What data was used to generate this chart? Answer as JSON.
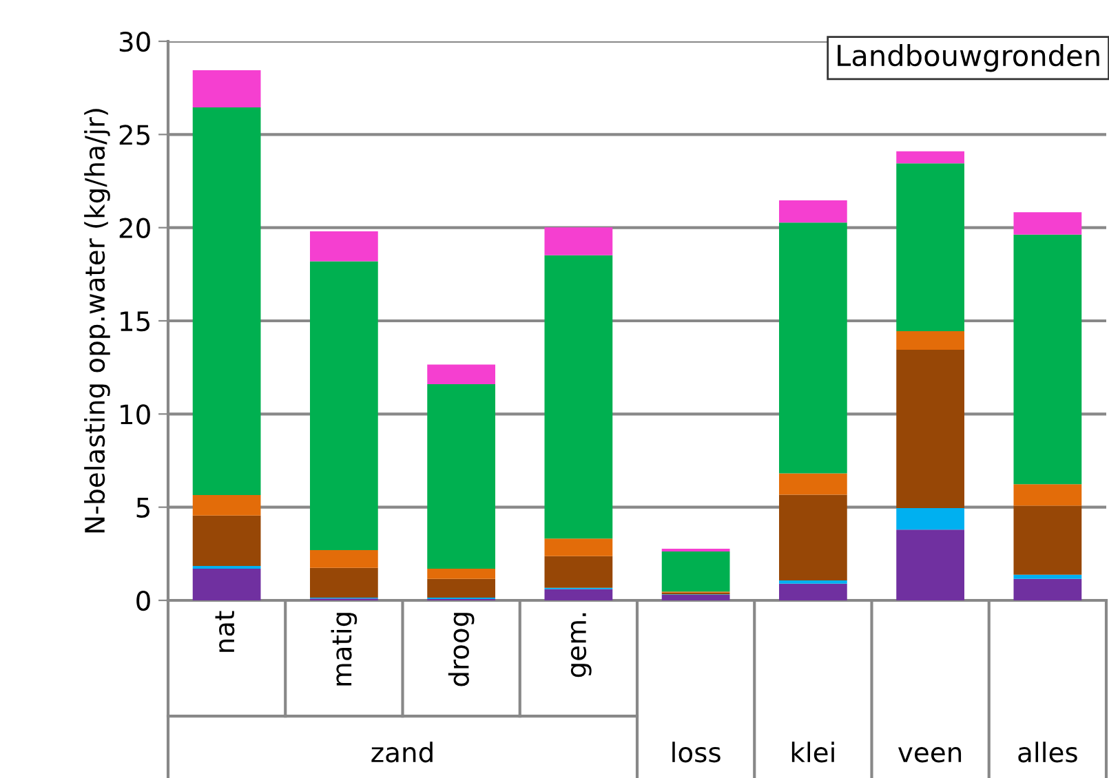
{
  "chart_data": {
    "type": "bar",
    "stacked": true,
    "title": "Landbouwgronden",
    "ylabel": "N-belasting opp.water (kg/ha/jr)",
    "categories": [
      "nat",
      "matig",
      "droog",
      "gem.",
      "loss",
      "klei",
      "veen",
      "alles"
    ],
    "annotations": [
      "zand"
    ],
    "series": [
      {
        "color": "#7030a0",
        "values": [
          1.7,
          0.1,
          0.07,
          0.6,
          0.3,
          0.9,
          3.8,
          1.15
        ]
      },
      {
        "color": "#00b0f0",
        "values": [
          0.15,
          0.05,
          0.08,
          0.07,
          0.02,
          0.17,
          1.15,
          0.23
        ]
      },
      {
        "color": "#974706",
        "values": [
          2.7,
          1.6,
          1.0,
          1.7,
          0.1,
          4.6,
          8.5,
          3.7
        ]
      },
      {
        "color": "#e36c09",
        "values": [
          1.1,
          0.95,
          0.55,
          0.95,
          0.05,
          1.15,
          1.0,
          1.15
        ]
      },
      {
        "color": "#00b050",
        "values": [
          20.8,
          15.5,
          9.9,
          15.2,
          2.15,
          13.45,
          9.0,
          13.4
        ]
      },
      {
        "color": "#f53fd0",
        "values": [
          2.0,
          1.6,
          1.05,
          1.5,
          0.15,
          1.2,
          0.65,
          1.2
        ]
      }
    ],
    "ylim": [
      0,
      30
    ],
    "yticks": [
      0,
      5,
      10,
      15,
      20,
      25,
      30
    ],
    "grid": "y",
    "legend": false
  }
}
